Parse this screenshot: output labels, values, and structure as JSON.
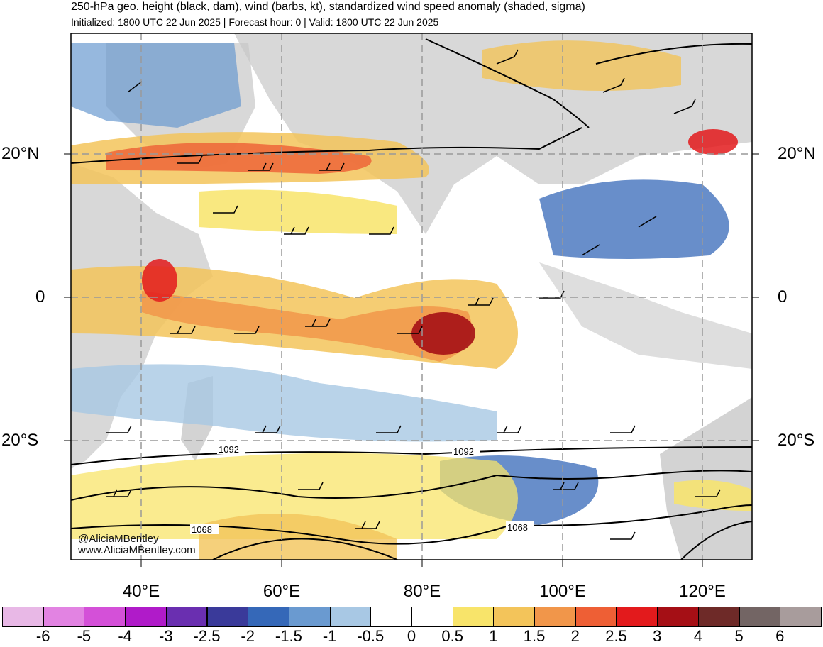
{
  "header": {
    "title": "250-hPa geo. height (black, dam), wind (barbs, kt), standardized wind speed anomaly (shaded, sigma)",
    "subtitle": "Initialized: 1800 UTC 22 Jun 2025 | Forecast hour: 0 | Valid: 1800 UTC 22 Jun 2025"
  },
  "map": {
    "lat_labels": {
      "n20_left": "20°N",
      "n20_right": "20°N",
      "eq_left": "0",
      "eq_right": "0",
      "s20_left": "20°S",
      "s20_right": "20°S"
    },
    "lon_labels": [
      "40°E",
      "60°E",
      "80°E",
      "100°E",
      "120°E"
    ],
    "contour_labels": [
      "1092",
      "1092",
      "1068",
      "1068"
    ]
  },
  "credit": {
    "twitter": "@AliciaMBentley",
    "website": "www.AliciaMBentley.com"
  },
  "colorbar": {
    "labels": [
      "-6",
      "-5",
      "-4",
      "-3",
      "-2.5",
      "-2",
      "-1.5",
      "-1",
      "-0.5",
      "0",
      "0.5",
      "1",
      "1.5",
      "2",
      "2.5",
      "3",
      "4",
      "5",
      "6"
    ],
    "colors": [
      "#e8b8e6",
      "#e283e2",
      "#d450d8",
      "#b01bc9",
      "#6a2fb0",
      "#3a3a9a",
      "#3568b8",
      "#6a9ad0",
      "#a8c8e4",
      "#ffffff",
      "#ffffff",
      "#f8e46a",
      "#f3c45a",
      "#f1964a",
      "#ee5f35",
      "#e31a1c",
      "#a50f15",
      "#6e2a28",
      "#736564",
      "#a89c9c"
    ]
  }
}
